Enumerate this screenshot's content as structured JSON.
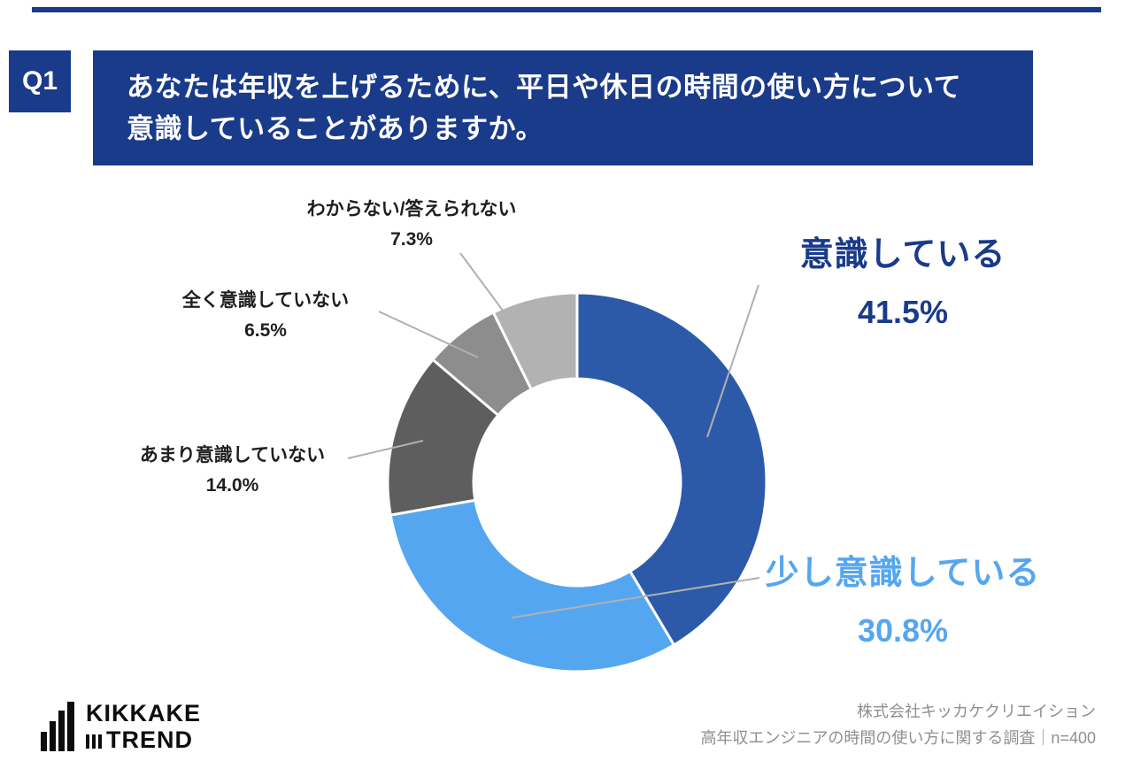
{
  "colors": {
    "navy": "#1a3a8a",
    "slice_dark_blue": "#2c5aa8",
    "slice_light_blue": "#55a6f0",
    "slice_dark_gray": "#5e5e5e",
    "slice_mid_gray": "#8d8d8d",
    "slice_light_gray": "#b2b2b2"
  },
  "page": {
    "q_label": "Q1",
    "title": "あなたは年収を上げるために、平日や休日の時間の使い方について\n意識していることがありますか。"
  },
  "chart_data": {
    "type": "pie",
    "subtype": "donut",
    "title": "あなたは年収を上げるために、平日や休日の時間の使い方について意識していることがありますか。",
    "start_angle_deg_from_top": 0,
    "direction": "clockwise",
    "units": "%",
    "segments": [
      {
        "label": "意識している",
        "value": 41.5,
        "display": "41.5%",
        "color": "#2c5aa8"
      },
      {
        "label": "少し意識している",
        "value": 30.8,
        "display": "30.8%",
        "color": "#55a6f0"
      },
      {
        "label": "あまり意識していない",
        "value": 14.0,
        "display": "14.0%",
        "color": "#5e5e5e"
      },
      {
        "label": "全く意識していない",
        "value": 6.5,
        "display": "6.5%",
        "color": "#8d8d8d"
      },
      {
        "label": "わからない/答えられない",
        "value": 7.3,
        "display": "7.3%",
        "color": "#b2b2b2"
      }
    ],
    "legend_position": "callout-labels"
  },
  "footer": {
    "logo_line1": "KIKKAKE",
    "logo_line2": "TREND",
    "source_line1": "株式会社キッカケクリエイション",
    "source_line2": "高年収エンジニアの時間の使い方に関する調査｜n=400"
  }
}
